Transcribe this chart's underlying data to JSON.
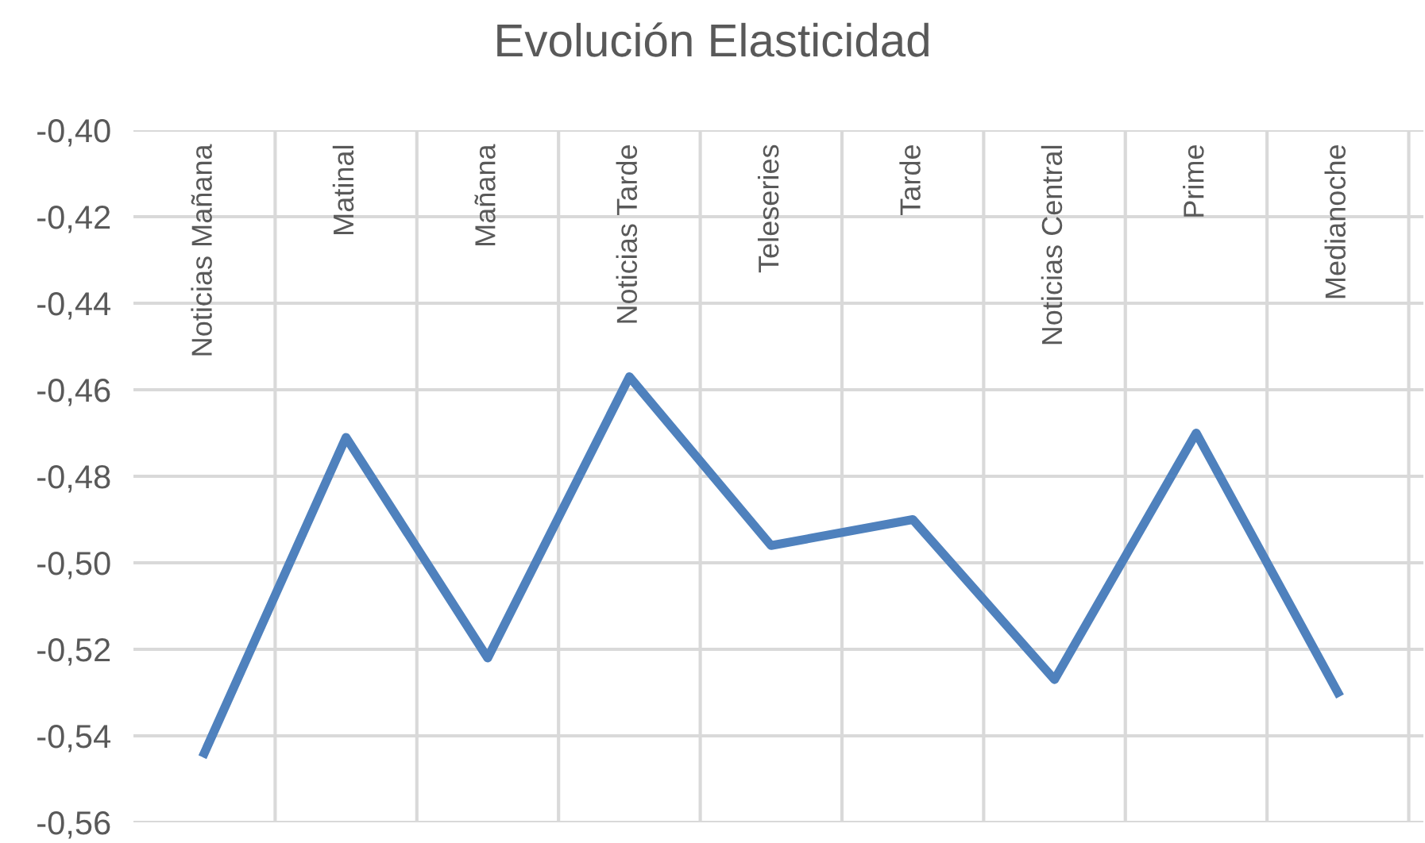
{
  "chart_data": {
    "type": "line",
    "title": "Evolución Elasticidad",
    "categories": [
      "Noticias Mañana",
      "Matinal",
      "Mañana",
      "Noticias Tarde",
      "Teleseries",
      "Tarde",
      "Noticias Central",
      "Prime",
      "Medianoche"
    ],
    "series": [
      {
        "color": "#4f81bd",
        "values": [
          -0.544,
          -0.471,
          -0.522,
          -0.457,
          -0.496,
          -0.49,
          -0.527,
          -0.47,
          -0.53
        ]
      }
    ],
    "ylim": [
      -0.56,
      -0.4
    ],
    "yticks": [
      {
        "value": -0.56,
        "label": "-0,56"
      },
      {
        "value": -0.54,
        "label": "-0,54"
      },
      {
        "value": -0.52,
        "label": "-0,52"
      },
      {
        "value": -0.5,
        "label": "-0,50"
      },
      {
        "value": -0.48,
        "label": "-0,48"
      },
      {
        "value": -0.46,
        "label": "-0,46"
      },
      {
        "value": -0.44,
        "label": "-0,44"
      },
      {
        "value": -0.42,
        "label": "-0,42"
      },
      {
        "value": -0.4,
        "label": "-0,40"
      }
    ],
    "grid": true,
    "legend": false,
    "marker": "none",
    "line_style": "solid"
  }
}
